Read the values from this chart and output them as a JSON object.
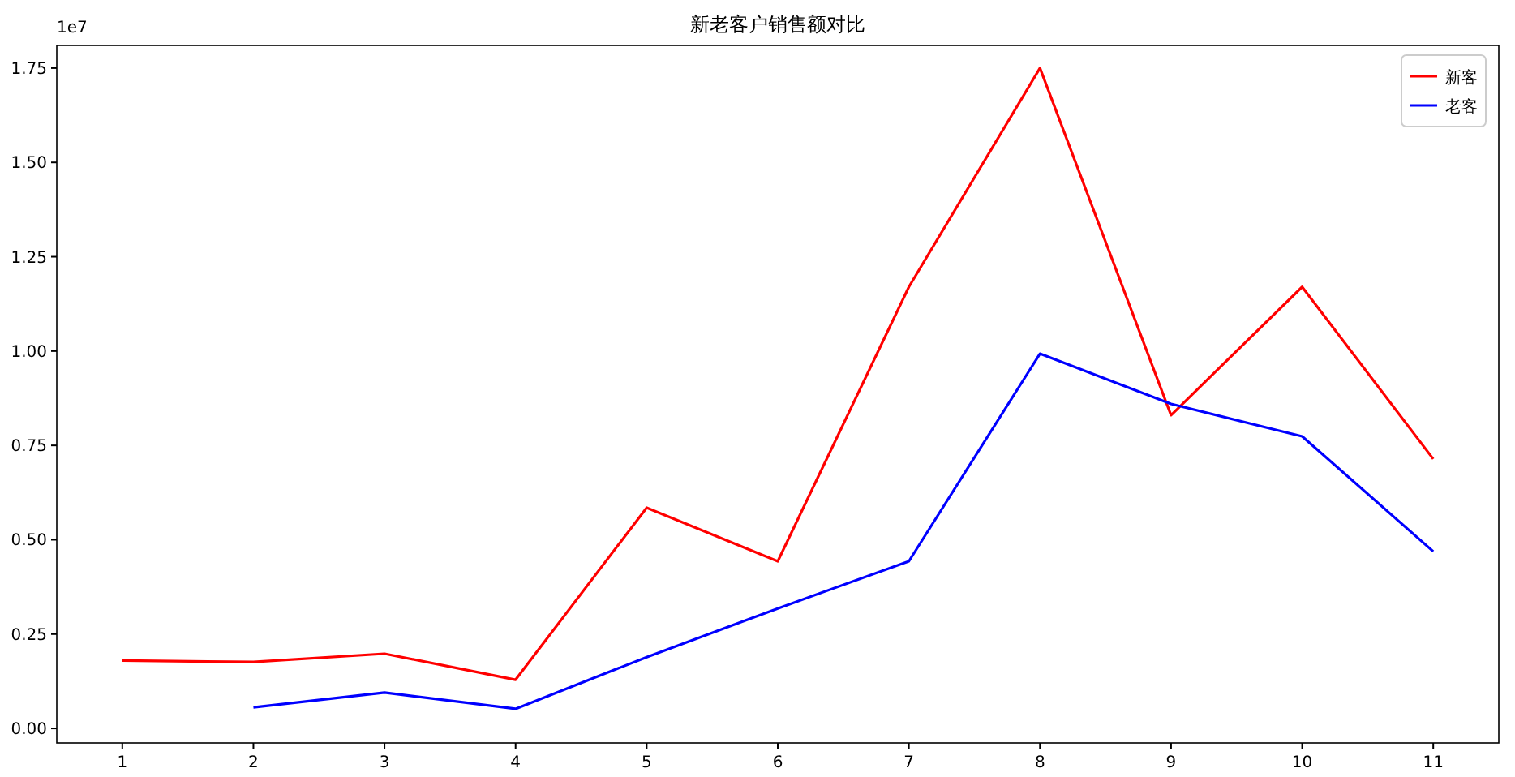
{
  "chart_data": {
    "type": "line",
    "title": "新老客户销售额对比",
    "x": [
      1,
      2,
      3,
      4,
      5,
      6,
      7,
      8,
      9,
      10,
      11
    ],
    "series": [
      {
        "name": "新客",
        "color": "#ff0000",
        "values": [
          0.18,
          0.176,
          0.198,
          0.129,
          0.585,
          0.443,
          1.17,
          1.75,
          0.83,
          1.17,
          0.714
        ]
      },
      {
        "name": "老客",
        "color": "#0000ff",
        "values": [
          null,
          0.056,
          0.095,
          0.052,
          0.189,
          0.318,
          0.443,
          0.993,
          0.86,
          0.774,
          0.469
        ]
      }
    ],
    "xlim": [
      0.5,
      11.5
    ],
    "xticks": [
      1,
      2,
      3,
      4,
      5,
      6,
      7,
      8,
      9,
      10,
      11
    ],
    "ylim": [
      -0.0385,
      1.81
    ],
    "yticks": [
      {
        "value": 0,
        "label": "0.00"
      },
      {
        "value": 0.25,
        "label": "0.25"
      },
      {
        "value": 0.5,
        "label": "0.50"
      },
      {
        "value": 0.75,
        "label": "0.75"
      },
      {
        "value": 1,
        "label": "1.00"
      },
      {
        "value": 1.25,
        "label": "1.25"
      },
      {
        "value": 1.5,
        "label": "1.50"
      },
      {
        "value": 1.75,
        "label": "1.75"
      }
    ],
    "annotations": [
      "1e7"
    ],
    "legend": "top right",
    "grid": false,
    "marker": "none",
    "line_style": "solid"
  }
}
